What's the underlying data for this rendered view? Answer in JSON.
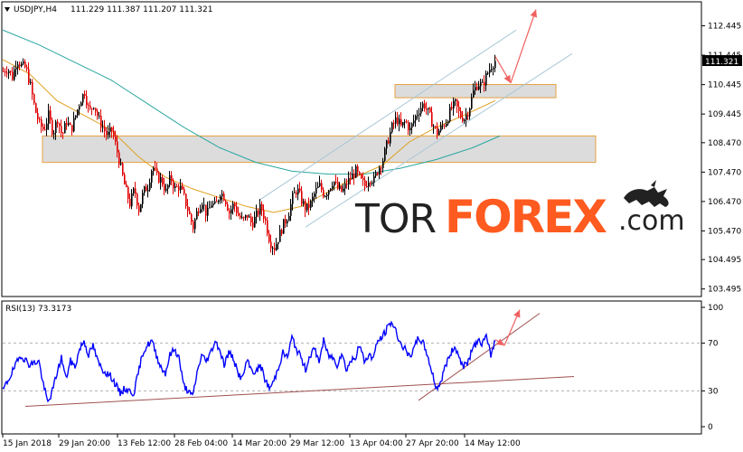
{
  "header": {
    "symbol": "USDJPY,H4",
    "ohlc": "111.229 111.387 111.207 111.321"
  },
  "rsi_header": "RSI(13) 73.3173",
  "current_price": "111.321",
  "watermark": {
    "text_light": "TOR",
    "text_bold": "FOREX",
    "suffix": ".com"
  },
  "colors": {
    "up_candle": "#000000",
    "down_candle": "#e00000",
    "ma_fast": "#e0a020",
    "ma_slow": "#2aa7a0",
    "channel": "#a9c8d8",
    "zone_fill": "#dcdcdc",
    "zone_border": "#e8a040",
    "rsi_line": "#0000ff",
    "trend_line": "#a05050",
    "arrow": "#f06060",
    "watermark_dark": "#222222",
    "watermark_accent": "#ff5a1f"
  },
  "chart_data": [
    {
      "type": "candlestick",
      "symbol": "USDJPY",
      "timeframe": "H4",
      "ylim": [
        103.3,
        113.2
      ],
      "y_ticks": [
        "112.445",
        "111.445",
        "110.445",
        "109.445",
        "108.470",
        "107.470",
        "106.470",
        "105.470",
        "104.495",
        "103.495"
      ],
      "x_ticks": [
        "15 Jan 2018",
        "29 Jan 20:00",
        "13 Feb 12:00",
        "28 Feb 04:00",
        "14 Mar 20:00",
        "29 Mar 12:00",
        "13 Apr 04:00",
        "27 Apr 20:00",
        "14 May 12:00"
      ],
      "close_path": [
        [
          0,
          110.9
        ],
        [
          5,
          111.0
        ],
        [
          10,
          110.7
        ],
        [
          15,
          111.3
        ],
        [
          20,
          111.1
        ],
        [
          25,
          111.0
        ],
        [
          30,
          110.4
        ],
        [
          35,
          109.6
        ],
        [
          40,
          109.1
        ],
        [
          45,
          108.9
        ],
        [
          50,
          109.4
        ],
        [
          55,
          108.8
        ],
        [
          60,
          109.3
        ],
        [
          65,
          108.7
        ],
        [
          70,
          109.2
        ],
        [
          75,
          108.9
        ],
        [
          80,
          109.4
        ],
        [
          85,
          109.9
        ],
        [
          90,
          110.2
        ],
        [
          95,
          109.5
        ],
        [
          100,
          109.8
        ],
        [
          105,
          109.3
        ],
        [
          110,
          109.0
        ],
        [
          115,
          108.7
        ],
        [
          120,
          108.9
        ],
        [
          125,
          108.3
        ],
        [
          130,
          107.6
        ],
        [
          135,
          106.9
        ],
        [
          140,
          106.4
        ],
        [
          145,
          106.9
        ],
        [
          150,
          106.2
        ],
        [
          155,
          106.8
        ],
        [
          160,
          107.0
        ],
        [
          165,
          107.7
        ],
        [
          170,
          107.3
        ],
        [
          175,
          107.2
        ],
        [
          180,
          106.8
        ],
        [
          185,
          107.3
        ],
        [
          190,
          106.9
        ],
        [
          195,
          107.0
        ],
        [
          200,
          106.6
        ],
        [
          205,
          106.1
        ],
        [
          210,
          105.6
        ],
        [
          215,
          106.2
        ],
        [
          220,
          106.5
        ],
        [
          225,
          106.0
        ],
        [
          230,
          106.4
        ],
        [
          235,
          106.3
        ],
        [
          240,
          106.8
        ],
        [
          245,
          106.6
        ],
        [
          250,
          106.1
        ],
        [
          255,
          106.4
        ],
        [
          260,
          106.0
        ],
        [
          265,
          105.8
        ],
        [
          270,
          106.0
        ],
        [
          275,
          105.7
        ],
        [
          280,
          106.0
        ],
        [
          285,
          106.3
        ],
        [
          290,
          105.8
        ],
        [
          295,
          105.1
        ],
        [
          300,
          104.9
        ],
        [
          305,
          105.3
        ],
        [
          310,
          105.7
        ],
        [
          315,
          106.0
        ],
        [
          320,
          106.6
        ],
        [
          325,
          106.9
        ],
        [
          330,
          106.5
        ],
        [
          335,
          106.2
        ],
        [
          340,
          106.4
        ],
        [
          345,
          106.8
        ],
        [
          350,
          107.0
        ],
        [
          355,
          106.7
        ],
        [
          360,
          106.9
        ],
        [
          365,
          107.2
        ],
        [
          370,
          106.9
        ],
        [
          375,
          106.8
        ],
        [
          380,
          107.1
        ],
        [
          385,
          107.3
        ],
        [
          390,
          107.5
        ],
        [
          395,
          107.2
        ],
        [
          400,
          107.0
        ],
        [
          405,
          107.3
        ],
        [
          410,
          107.2
        ],
        [
          415,
          107.6
        ],
        [
          420,
          107.9
        ],
        [
          425,
          108.5
        ],
        [
          430,
          109.0
        ],
        [
          435,
          109.3
        ],
        [
          440,
          109.0
        ],
        [
          445,
          109.2
        ],
        [
          450,
          108.9
        ],
        [
          455,
          109.3
        ],
        [
          460,
          109.6
        ],
        [
          465,
          109.8
        ],
        [
          470,
          109.5
        ],
        [
          475,
          109.1
        ],
        [
          480,
          108.8
        ],
        [
          485,
          109.0
        ],
        [
          490,
          109.2
        ],
        [
          495,
          109.6
        ],
        [
          500,
          109.8
        ],
        [
          505,
          109.4
        ],
        [
          510,
          109.3
        ],
        [
          515,
          109.6
        ],
        [
          520,
          110.2
        ],
        [
          525,
          110.5
        ],
        [
          530,
          110.4
        ],
        [
          535,
          110.8
        ],
        [
          540,
          111.1
        ],
        [
          545,
          111.3
        ]
      ],
      "ma_fast_path": [
        [
          0,
          111.3
        ],
        [
          30,
          110.8
        ],
        [
          60,
          109.9
        ],
        [
          90,
          109.4
        ],
        [
          120,
          108.9
        ],
        [
          150,
          108.0
        ],
        [
          180,
          107.3
        ],
        [
          210,
          106.9
        ],
        [
          240,
          106.6
        ],
        [
          270,
          106.3
        ],
        [
          300,
          106.1
        ],
        [
          330,
          106.3
        ],
        [
          360,
          106.8
        ],
        [
          390,
          107.3
        ],
        [
          420,
          107.7
        ],
        [
          450,
          108.5
        ],
        [
          480,
          109.0
        ],
        [
          510,
          109.4
        ],
        [
          545,
          109.9
        ]
      ],
      "ma_slow_path": [
        [
          0,
          112.3
        ],
        [
          40,
          111.8
        ],
        [
          80,
          111.2
        ],
        [
          120,
          110.6
        ],
        [
          160,
          109.8
        ],
        [
          200,
          109.0
        ],
        [
          240,
          108.3
        ],
        [
          280,
          107.8
        ],
        [
          320,
          107.5
        ],
        [
          360,
          107.4
        ],
        [
          400,
          107.4
        ],
        [
          440,
          107.6
        ],
        [
          480,
          107.9
        ],
        [
          520,
          108.3
        ],
        [
          550,
          108.7
        ]
      ],
      "channel_lines": [
        {
          "from": [
            283,
            106.5
          ],
          "to": [
            568,
            112.3
          ]
        },
        {
          "from": [
            335,
            105.6
          ],
          "to": [
            630,
            111.5
          ]
        }
      ],
      "zones": [
        {
          "x": [
            434,
            612
          ],
          "y": [
            110.0,
            110.45
          ]
        },
        {
          "x": [
            44,
            656
          ],
          "y": [
            107.8,
            108.7
          ]
        }
      ],
      "arrows": [
        {
          "from": [
            545,
            111.4
          ],
          "to": [
            562,
            110.5
          ]
        },
        {
          "from": [
            562,
            110.5
          ],
          "to": [
            590,
            113.0
          ]
        }
      ],
      "last_price": 111.321
    },
    {
      "type": "line",
      "name": "RSI(13)",
      "ylim": [
        0,
        100
      ],
      "y_ticks": [
        "100",
        "70",
        "30",
        "0"
      ],
      "levels": [
        70,
        30
      ],
      "values_path": [
        [
          0,
          30
        ],
        [
          10,
          45
        ],
        [
          20,
          60
        ],
        [
          30,
          52
        ],
        [
          40,
          55
        ],
        [
          45,
          35
        ],
        [
          50,
          20
        ],
        [
          55,
          30
        ],
        [
          60,
          45
        ],
        [
          65,
          58
        ],
        [
          70,
          40
        ],
        [
          75,
          55
        ],
        [
          80,
          50
        ],
        [
          85,
          65
        ],
        [
          90,
          72
        ],
        [
          95,
          60
        ],
        [
          100,
          68
        ],
        [
          105,
          55
        ],
        [
          110,
          48
        ],
        [
          115,
          45
        ],
        [
          120,
          42
        ],
        [
          125,
          35
        ],
        [
          130,
          28
        ],
        [
          135,
          32
        ],
        [
          140,
          30
        ],
        [
          145,
          28
        ],
        [
          150,
          45
        ],
        [
          155,
          62
        ],
        [
          160,
          68
        ],
        [
          165,
          72
        ],
        [
          170,
          60
        ],
        [
          175,
          50
        ],
        [
          180,
          45
        ],
        [
          185,
          60
        ],
        [
          190,
          65
        ],
        [
          195,
          58
        ],
        [
          200,
          35
        ],
        [
          205,
          30
        ],
        [
          210,
          25
        ],
        [
          215,
          45
        ],
        [
          220,
          60
        ],
        [
          225,
          55
        ],
        [
          230,
          62
        ],
        [
          235,
          72
        ],
        [
          240,
          65
        ],
        [
          245,
          52
        ],
        [
          250,
          62
        ],
        [
          255,
          58
        ],
        [
          260,
          45
        ],
        [
          265,
          40
        ],
        [
          270,
          55
        ],
        [
          275,
          48
        ],
        [
          280,
          45
        ],
        [
          285,
          52
        ],
        [
          290,
          40
        ],
        [
          295,
          32
        ],
        [
          300,
          38
        ],
        [
          305,
          50
        ],
        [
          310,
          62
        ],
        [
          315,
          58
        ],
        [
          320,
          75
        ],
        [
          325,
          65
        ],
        [
          330,
          58
        ],
        [
          335,
          48
        ],
        [
          340,
          60
        ],
        [
          345,
          65
        ],
        [
          350,
          55
        ],
        [
          355,
          72
        ],
        [
          360,
          60
        ],
        [
          365,
          58
        ],
        [
          370,
          52
        ],
        [
          375,
          62
        ],
        [
          380,
          48
        ],
        [
          385,
          55
        ],
        [
          390,
          58
        ],
        [
          395,
          68
        ],
        [
          400,
          55
        ],
        [
          405,
          60
        ],
        [
          410,
          58
        ],
        [
          415,
          72
        ],
        [
          420,
          75
        ],
        [
          425,
          82
        ],
        [
          430,
          88
        ],
        [
          435,
          80
        ],
        [
          440,
          70
        ],
        [
          445,
          65
        ],
        [
          450,
          58
        ],
        [
          455,
          65
        ],
        [
          460,
          75
        ],
        [
          465,
          70
        ],
        [
          470,
          60
        ],
        [
          475,
          45
        ],
        [
          480,
          32
        ],
        [
          485,
          38
        ],
        [
          490,
          52
        ],
        [
          495,
          60
        ],
        [
          500,
          68
        ],
        [
          505,
          58
        ],
        [
          510,
          50
        ],
        [
          515,
          55
        ],
        [
          520,
          65
        ],
        [
          525,
          72
        ],
        [
          530,
          70
        ],
        [
          535,
          75
        ],
        [
          540,
          60
        ],
        [
          545,
          73
        ]
      ],
      "trend_lines": [
        {
          "from": [
            25,
            17
          ],
          "to": [
            632,
            42
          ]
        },
        {
          "from": [
            460,
            22
          ],
          "to": [
            594,
            95
          ]
        }
      ],
      "arrows": [
        {
          "from": [
            545,
            73
          ],
          "to": [
            555,
            68
          ]
        },
        {
          "from": [
            555,
            68
          ],
          "to": [
            572,
            98
          ]
        }
      ],
      "last_value": 73.3173
    }
  ]
}
